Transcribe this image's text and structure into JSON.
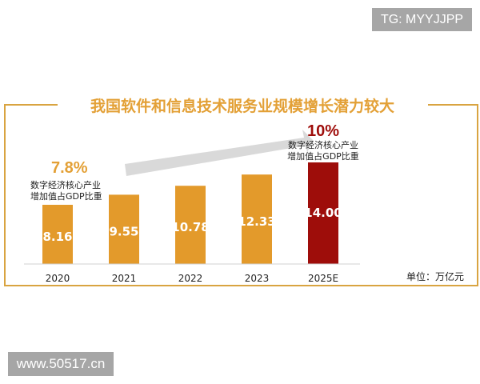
{
  "watermarks": {
    "top_right": "TG: MYYJJPP",
    "bottom_left": "www.50517.cn"
  },
  "chart_data": {
    "type": "bar",
    "title": "我国软件和信息技术服务业规模增长潜力较大",
    "categories": [
      "2020",
      "2021",
      "2022",
      "2023",
      "2025E"
    ],
    "values": [
      8.16,
      9.55,
      10.78,
      12.33,
      14.0
    ],
    "value_labels": [
      "8.16",
      "9.55",
      "10.78",
      "12.33",
      "14.00"
    ],
    "unit_label": "单位：万亿元",
    "ylim": [
      0,
      16
    ],
    "grid": false,
    "colors": {
      "bar": "#E39A2B",
      "highlight_bar": "#9E0D0A",
      "title": "#E3A036",
      "frame": "#D9A441",
      "arrow": "#D9D9D9"
    },
    "highlight_index": 4,
    "annotations": [
      {
        "value": "7.8%",
        "line1": "数字经济核心产业",
        "line2": "增加值占GDP比重",
        "color": "#E3A036"
      },
      {
        "value": "10%",
        "line1": "数字经济核心产业",
        "line2": "增加值占GDP比重",
        "color": "#9E0D0A"
      }
    ]
  }
}
